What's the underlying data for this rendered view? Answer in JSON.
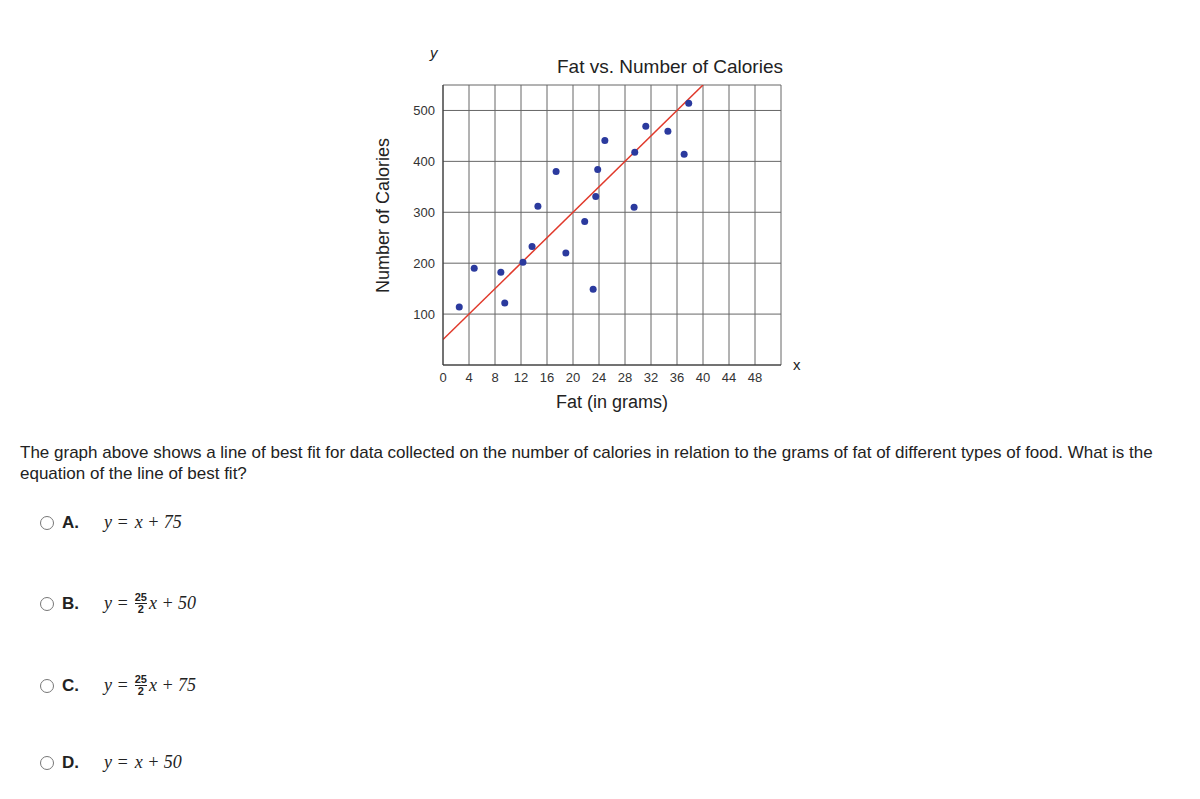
{
  "chart_data": {
    "type": "scatter",
    "title": "Fat vs. Number of Calories",
    "x_label": "Fat (in grams)",
    "y_label": "Number of Calories",
    "axis_symbols": {
      "x": "x",
      "y": "y"
    },
    "xlim": [
      0,
      52
    ],
    "xticks": [
      0,
      4,
      8,
      12,
      16,
      20,
      24,
      28,
      32,
      36,
      40,
      44,
      48
    ],
    "ylim": [
      0,
      550
    ],
    "yticks": [
      100,
      200,
      300,
      400,
      500
    ],
    "grid": true,
    "series": [
      {
        "type": "scatter",
        "marker": "circle",
        "color": "#2b3a9e",
        "x": [
          2.5,
          4.8,
          8.9,
          9.5,
          12.3,
          13.7,
          14.6,
          17.4,
          18.9,
          21.8,
          23.1,
          23.5,
          23.8,
          24.9,
          29.4,
          29.5,
          31.2,
          34.6,
          37.1,
          37.8
        ],
        "values": [
          114,
          190,
          182,
          122,
          202,
          233,
          312,
          380,
          220,
          282,
          149,
          331,
          384,
          441,
          310,
          418,
          469,
          459,
          414,
          514
        ]
      },
      {
        "type": "line",
        "line_style": "solid",
        "color": "#e0392b",
        "x": [
          0,
          40
        ],
        "values": [
          50,
          550
        ]
      }
    ]
  },
  "question": "The graph above shows a line of best fit for data collected on the number of calories in relation to the grams of fat of different types of food. What is the equation of the line of best fit?",
  "options": [
    {
      "label": "A.",
      "lhs": "y =",
      "rest": "x + 75"
    },
    {
      "label": "B.",
      "lhs": "y =",
      "fraction": {
        "num": "25",
        "den": "2"
      },
      "rest": "x + 50"
    },
    {
      "label": "C.",
      "lhs": "y =",
      "fraction": {
        "num": "25",
        "den": "2"
      },
      "rest": "x + 75"
    },
    {
      "label": "D.",
      "lhs": "y =",
      "rest": "x + 50"
    }
  ]
}
